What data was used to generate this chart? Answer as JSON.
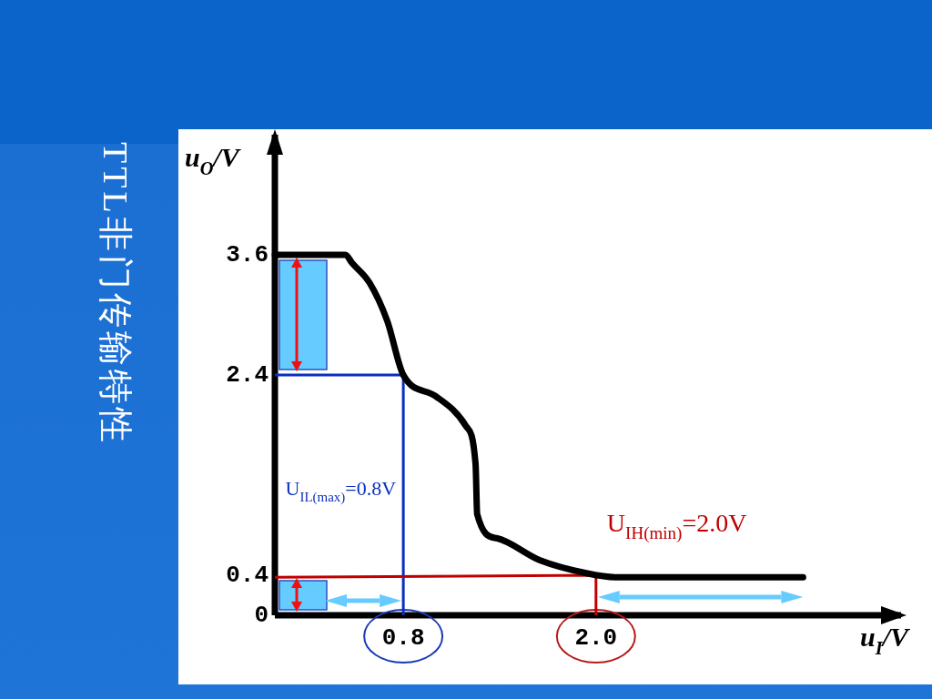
{
  "chart_data": {
    "type": "line",
    "title": "TTL非门传输特性",
    "xlabel": "u$_{I}$/V",
    "ylabel": "u$_{O}$/V",
    "xlim": [
      0,
      3.9
    ],
    "ylim": [
      0,
      4.8
    ],
    "xticks": [
      0.8,
      {
        "value": 2.0,
        "label": "2.0"
      }
    ],
    "yticks": [
      0,
      0.4,
      2.4,
      3.6
    ],
    "series": [
      {
        "color": "#000000",
        "x": [
          0,
          0.44,
          0.48,
          0.59,
          0.7,
          0.8,
          1.0,
          1.19,
          1.25,
          1.26,
          1.38,
          1.65,
          1.94,
          2.12,
          3.29
        ],
        "values": [
          3.6,
          3.6,
          3.52,
          3.32,
          2.94,
          2.4,
          2.19,
          1.89,
          1.51,
          1.01,
          0.77,
          0.55,
          0.42,
          0.38,
          0.38
        ]
      },
      {
        "name": "U$_{IL(max)}$=0.8V",
        "color": "#0b2fbf",
        "x": [
          0,
          0.8,
          0.8
        ],
        "values": [
          2.4,
          2.4,
          0
        ]
      },
      {
        "name": "U$_{IH(min)}$=2.0V",
        "color": "#c00000",
        "x": [
          0,
          2.0,
          2.0
        ],
        "values": [
          0.38,
          0.4,
          0
        ]
      }
    ]
  }
}
